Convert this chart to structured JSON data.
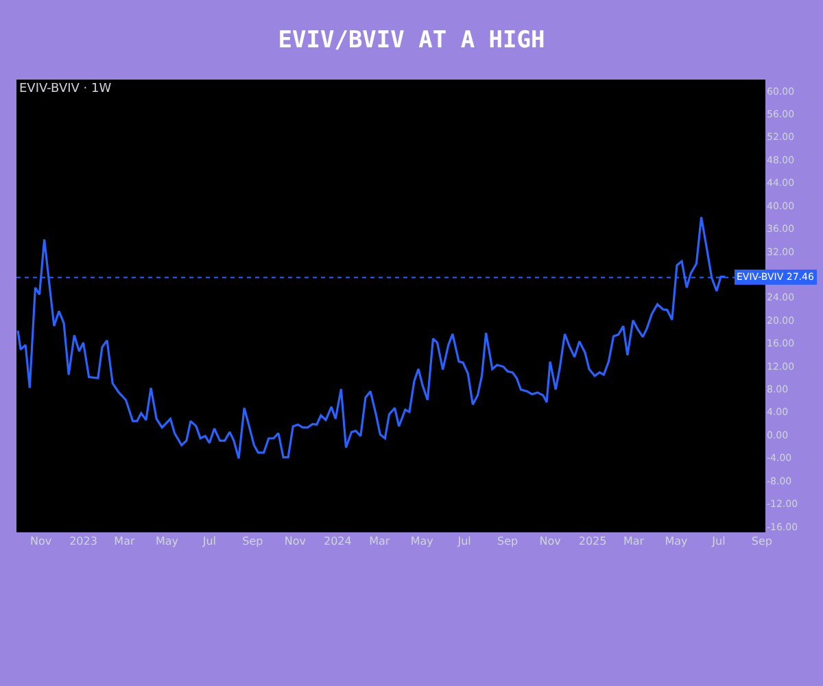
{
  "chart_data": {
    "type": "line",
    "title": "EVIV/BVIV AT A HIGH",
    "subtitle": "EVIV-BVIV · 1W",
    "x": [
      "2022-09-29",
      "2022-10-03",
      "2022-10-10",
      "2022-10-16",
      "2022-10-24",
      "2022-10-30",
      "2022-11-06",
      "2022-11-20",
      "2022-11-27",
      "2022-12-04",
      "2022-12-11",
      "2022-12-19",
      "2022-12-26",
      "2023-01-01",
      "2023-01-09",
      "2023-01-22",
      "2023-01-28",
      "2023-02-04",
      "2023-02-12",
      "2023-02-21",
      "2023-03-03",
      "2023-03-13",
      "2023-03-19",
      "2023-03-25",
      "2023-04-01",
      "2023-04-08",
      "2023-04-16",
      "2023-04-24",
      "2023-05-06",
      "2023-05-12",
      "2023-05-22",
      "2023-05-29",
      "2023-06-04",
      "2023-06-12",
      "2023-06-18",
      "2023-06-25",
      "2023-07-01",
      "2023-07-08",
      "2023-07-16",
      "2023-07-23",
      "2023-07-30",
      "2023-08-05",
      "2023-08-12",
      "2023-08-20",
      "2023-08-27",
      "2023-09-03",
      "2023-09-09",
      "2023-09-17",
      "2023-09-24",
      "2023-10-01",
      "2023-10-08",
      "2023-10-15",
      "2023-10-22",
      "2023-10-29",
      "2023-11-05",
      "2023-11-12",
      "2023-11-19",
      "2023-11-26",
      "2023-12-02",
      "2023-12-08",
      "2023-12-15",
      "2023-12-23",
      "2023-12-29",
      "2024-01-06",
      "2024-01-13",
      "2024-01-21",
      "2024-01-27",
      "2024-02-03",
      "2024-02-10",
      "2024-02-17",
      "2024-02-25",
      "2024-03-02",
      "2024-03-09",
      "2024-03-15",
      "2024-03-23",
      "2024-03-29",
      "2024-04-07",
      "2024-04-13",
      "2024-04-20",
      "2024-04-26",
      "2024-05-02",
      "2024-05-09",
      "2024-05-17",
      "2024-05-23",
      "2024-05-31",
      "2024-06-08",
      "2024-06-14",
      "2024-06-23",
      "2024-06-29",
      "2024-07-06",
      "2024-07-13",
      "2024-07-20",
      "2024-07-26",
      "2024-08-01",
      "2024-08-10",
      "2024-08-17",
      "2024-08-26",
      "2024-09-01",
      "2024-09-08",
      "2024-09-14",
      "2024-09-20",
      "2024-09-29",
      "2024-10-06",
      "2024-10-14",
      "2024-10-22",
      "2024-10-27",
      "2024-11-01",
      "2024-11-09",
      "2024-11-15",
      "2024-11-22",
      "2024-11-29",
      "2024-12-06",
      "2024-12-13",
      "2024-12-21",
      "2024-12-27",
      "2025-01-04",
      "2025-01-11",
      "2025-01-17",
      "2025-01-24",
      "2025-01-31",
      "2025-02-07",
      "2025-02-14",
      "2025-02-20",
      "2025-02-28",
      "2025-03-06",
      "2025-03-14",
      "2025-03-20",
      "2025-03-27",
      "2025-04-04",
      "2025-04-12",
      "2025-04-18",
      "2025-04-25",
      "2025-05-02",
      "2025-05-09",
      "2025-05-16",
      "2025-05-22",
      "2025-05-30",
      "2025-06-06",
      "2025-06-14",
      "2025-06-21",
      "2025-06-28",
      "2025-07-04",
      "2025-07-10"
    ],
    "series": [
      {
        "color": "#2962ff",
        "values": [
          18.2,
          14.9,
          15.7,
          8.2,
          25.7,
          24.5,
          34.1,
          19.0,
          21.6,
          19.5,
          10.5,
          17.4,
          14.6,
          16.1,
          10.1,
          9.9,
          15.3,
          16.5,
          9.0,
          7.4,
          6.1,
          2.4,
          2.4,
          3.8,
          2.6,
          8.2,
          2.8,
          1.3,
          2.8,
          0.3,
          -1.8,
          -1.0,
          2.4,
          1.5,
          -0.6,
          -0.2,
          -1.4,
          1.1,
          -1.0,
          -1.0,
          0.5,
          -1.0,
          -4.1,
          4.7,
          1.5,
          -1.8,
          -3.1,
          -3.1,
          -0.6,
          -0.6,
          0.3,
          -3.9,
          -3.9,
          1.5,
          1.8,
          1.3,
          1.3,
          1.9,
          1.8,
          3.4,
          2.6,
          4.9,
          2.8,
          8.0,
          -2.2,
          0.5,
          0.7,
          -0.2,
          6.5,
          7.6,
          3.6,
          0.1,
          -0.6,
          3.6,
          4.7,
          1.5,
          4.4,
          4.0,
          9.4,
          11.5,
          8.6,
          6.1,
          16.8,
          16.1,
          11.4,
          15.7,
          17.6,
          12.8,
          12.6,
          10.7,
          5.3,
          6.9,
          10.3,
          17.8,
          11.5,
          12.2,
          11.9,
          11.1,
          10.9,
          9.9,
          7.9,
          7.6,
          7.1,
          7.4,
          6.9,
          5.7,
          12.8,
          7.9,
          11.8,
          17.6,
          15.4,
          13.6,
          16.3,
          14.4,
          11.5,
          10.3,
          10.9,
          10.5,
          12.8,
          17.2,
          17.5,
          19.0,
          13.9,
          20.0,
          18.6,
          17.1,
          18.6,
          21.1,
          22.8,
          21.9,
          21.8,
          20.1,
          29.6,
          30.3,
          25.7,
          28.2,
          29.9,
          38.0,
          32.4,
          27.4,
          25.1,
          27.6,
          27.6
        ]
      }
    ],
    "xlim": [
      "2022-09-27",
      "2025-09-06"
    ],
    "xticks": [
      {
        "value": "2022-11-01",
        "label": "Nov"
      },
      {
        "value": "2023-01-01",
        "label": "2023"
      },
      {
        "value": "2023-03-01",
        "label": "Mar"
      },
      {
        "value": "2023-05-01",
        "label": "May"
      },
      {
        "value": "2023-07-01",
        "label": "Jul"
      },
      {
        "value": "2023-09-01",
        "label": "Sep"
      },
      {
        "value": "2023-11-01",
        "label": "Nov"
      },
      {
        "value": "2024-01-01",
        "label": "2024"
      },
      {
        "value": "2024-03-01",
        "label": "Mar"
      },
      {
        "value": "2024-05-01",
        "label": "May"
      },
      {
        "value": "2024-07-01",
        "label": "Jul"
      },
      {
        "value": "2024-09-01",
        "label": "Sep"
      },
      {
        "value": "2024-11-01",
        "label": "Nov"
      },
      {
        "value": "2025-01-01",
        "label": "2025"
      },
      {
        "value": "2025-03-01",
        "label": "Mar"
      },
      {
        "value": "2025-05-01",
        "label": "May"
      },
      {
        "value": "2025-07-01",
        "label": "Jul"
      },
      {
        "value": "2025-09-01",
        "label": "Sep"
      }
    ],
    "ylim": [
      -17,
      62
    ],
    "yticks": [
      {
        "value": -16,
        "label": "-16.00"
      },
      {
        "value": -12,
        "label": "-12.00"
      },
      {
        "value": -8,
        "label": "-8.00"
      },
      {
        "value": -4,
        "label": "-4.00"
      },
      {
        "value": 0,
        "label": "0.00"
      },
      {
        "value": 4,
        "label": "4.00"
      },
      {
        "value": 8,
        "label": "8.00"
      },
      {
        "value": 12,
        "label": "12.00"
      },
      {
        "value": 16,
        "label": "16.00"
      },
      {
        "value": 20,
        "label": "20.00"
      },
      {
        "value": 24,
        "label": "24.00"
      },
      {
        "value": 32,
        "label": "32.00"
      },
      {
        "value": 36,
        "label": "36.00"
      },
      {
        "value": 40,
        "label": "40.00"
      },
      {
        "value": 44,
        "label": "44.00"
      },
      {
        "value": 48,
        "label": "48.00"
      },
      {
        "value": 52,
        "label": "52.00"
      },
      {
        "value": 56,
        "label": "56.00"
      },
      {
        "value": 60,
        "label": "60.00"
      }
    ],
    "ref_lines": [
      {
        "axis": "y",
        "value": 27.46,
        "label": "EVIV-BVIV 27.46",
        "color": "#2962ff",
        "line_style": "dotted"
      }
    ],
    "grid": false,
    "marker": "none",
    "line_style": "solid"
  }
}
